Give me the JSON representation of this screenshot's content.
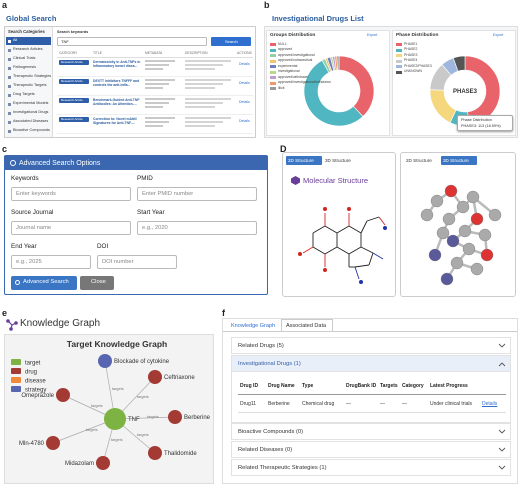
{
  "panel_labels": [
    "a",
    "b",
    "c",
    "D",
    "e",
    "f"
  ],
  "global_search": {
    "title": "Global Search",
    "categories_title": "Search Categories",
    "categories": [
      "All",
      "Research Articles",
      "Clinical Trials",
      "Pathogenesis",
      "Therapeutic Strategies",
      "Therapeutic Targets",
      "Drug Targets",
      "Experimental Models",
      "Investigational Drugs",
      "Associated Diseases",
      "Bioactive Compounds"
    ],
    "keywords_label": "Search keywords",
    "keyword": "TNF",
    "search_button": "Search",
    "columns": [
      "CATEGORY",
      "TITLE",
      "METADATA",
      "DESCRIPTION",
      "ACTIONS"
    ],
    "rows": [
      {
        "category": "Research Article",
        "title": "Dermatoxicity in Anti-TNFs in Inflammatory bowel disea...",
        "action": "Details"
      },
      {
        "category": "Research Article",
        "title": "DEXTT inhibitors TNFFF and controls the anti-infla...",
        "action": "Details"
      },
      {
        "category": "Research Article",
        "title": "Benchmark-Guided Anti-TNF Antibodies: An Attention-...",
        "action": "Details"
      },
      {
        "category": "Research Article",
        "title": "Correction to: Novel mAbN Signatures for Anti-TNF-...",
        "action": "Details"
      }
    ]
  },
  "drugs_list": {
    "title": "Investigational Drugs List",
    "export": "Export",
    "groups": {
      "title": "Groups Distribution",
      "names": [
        "NULL",
        "approved",
        "approved/investigational",
        "approved/nutraceutical",
        "experimental",
        "investigational",
        "approved/withdrawn",
        "approved/investigational/withdrawn",
        "illicit"
      ],
      "colors": [
        "#e8646a",
        "#4fb6c2",
        "#8fd0a8",
        "#f2c46d",
        "#6c7fc4",
        "#b9d98a",
        "#c39bd3",
        "#f09a6a",
        "#999999"
      ],
      "values": [
        38,
        54,
        1.5,
        1,
        1.5,
        1,
        1,
        1,
        1
      ]
    },
    "phase": {
      "title": "Phase Distribution",
      "names": [
        "PHASE1",
        "PHASE2",
        "PHASE3",
        "PHASE4",
        "PHASE2/PHASE3",
        "UNKNOWN"
      ],
      "colors": [
        "#e8646a",
        "#4fb6c2",
        "#f5d77e",
        "#c9c9c9",
        "#9fb7de",
        "#555555"
      ],
      "values": [
        48,
        9,
        18.59,
        13,
        6,
        5.41
      ],
      "center_label": "PHASE3",
      "tooltip_title": "Phase Distribution",
      "tooltip_text": "PHASE3: 113 (18.59%)"
    }
  },
  "advanced_search": {
    "title": "Advanced Search Options",
    "fields": [
      {
        "label": "Keywords",
        "placeholder": "Enter keywords"
      },
      {
        "label": "PMID",
        "placeholder": "Enter PMID number"
      },
      {
        "label": "Source Journal",
        "placeholder": "Journal name"
      },
      {
        "label": "Start Year",
        "placeholder": "e.g., 2020"
      },
      {
        "label": "End Year",
        "placeholder": "e.g., 2025"
      },
      {
        "label": "DOI",
        "placeholder": "DOI number"
      }
    ],
    "search_button": "Advanced Search",
    "close_button": "Close"
  },
  "structure": {
    "tab_2d": "2D Structure",
    "tab_3d": "3D Structure",
    "title": "Molecular Structure"
  },
  "knowledge_graph": {
    "title": "Knowledge Graph",
    "graph_title": "Target Knowledge Graph",
    "legend": [
      {
        "name": "target",
        "color": "#7cb342"
      },
      {
        "name": "drug",
        "color": "#a33a33"
      },
      {
        "name": "disease",
        "color": "#ef8a3a"
      },
      {
        "name": "strategy",
        "color": "#5865b0"
      }
    ],
    "center": "TNF",
    "edge_label": "targets",
    "nodes": [
      {
        "label": "Blockade of cytokine",
        "kind": 3
      },
      {
        "label": "Ceftriaxone",
        "kind": 1
      },
      {
        "label": "Berberine",
        "kind": 1
      },
      {
        "label": "Thalidomide",
        "kind": 1
      },
      {
        "label": "Midazolam",
        "kind": 1
      },
      {
        "label": "Mln-4780",
        "kind": 1
      },
      {
        "label": "Omeprazole",
        "kind": 1
      }
    ]
  },
  "associated": {
    "tabs": [
      "Knowledge Graph",
      "Associated Data"
    ],
    "sections": [
      "Related Drugs (5)",
      "Investigational Drugs (1)",
      "Bioactive Compounds (0)",
      "Related Diseases (0)",
      "Related Therapeutic Strategies (1)"
    ],
    "table": {
      "headers": [
        "Drug ID",
        "Drug Name",
        "Type",
        "DrugBank ID",
        "Targets",
        "Category",
        "Latest Progress"
      ],
      "row": [
        "Drug11",
        "Berberine",
        "Chemical drug",
        "—",
        "—",
        "—",
        "Under clinical trials"
      ],
      "action": "Details"
    }
  }
}
